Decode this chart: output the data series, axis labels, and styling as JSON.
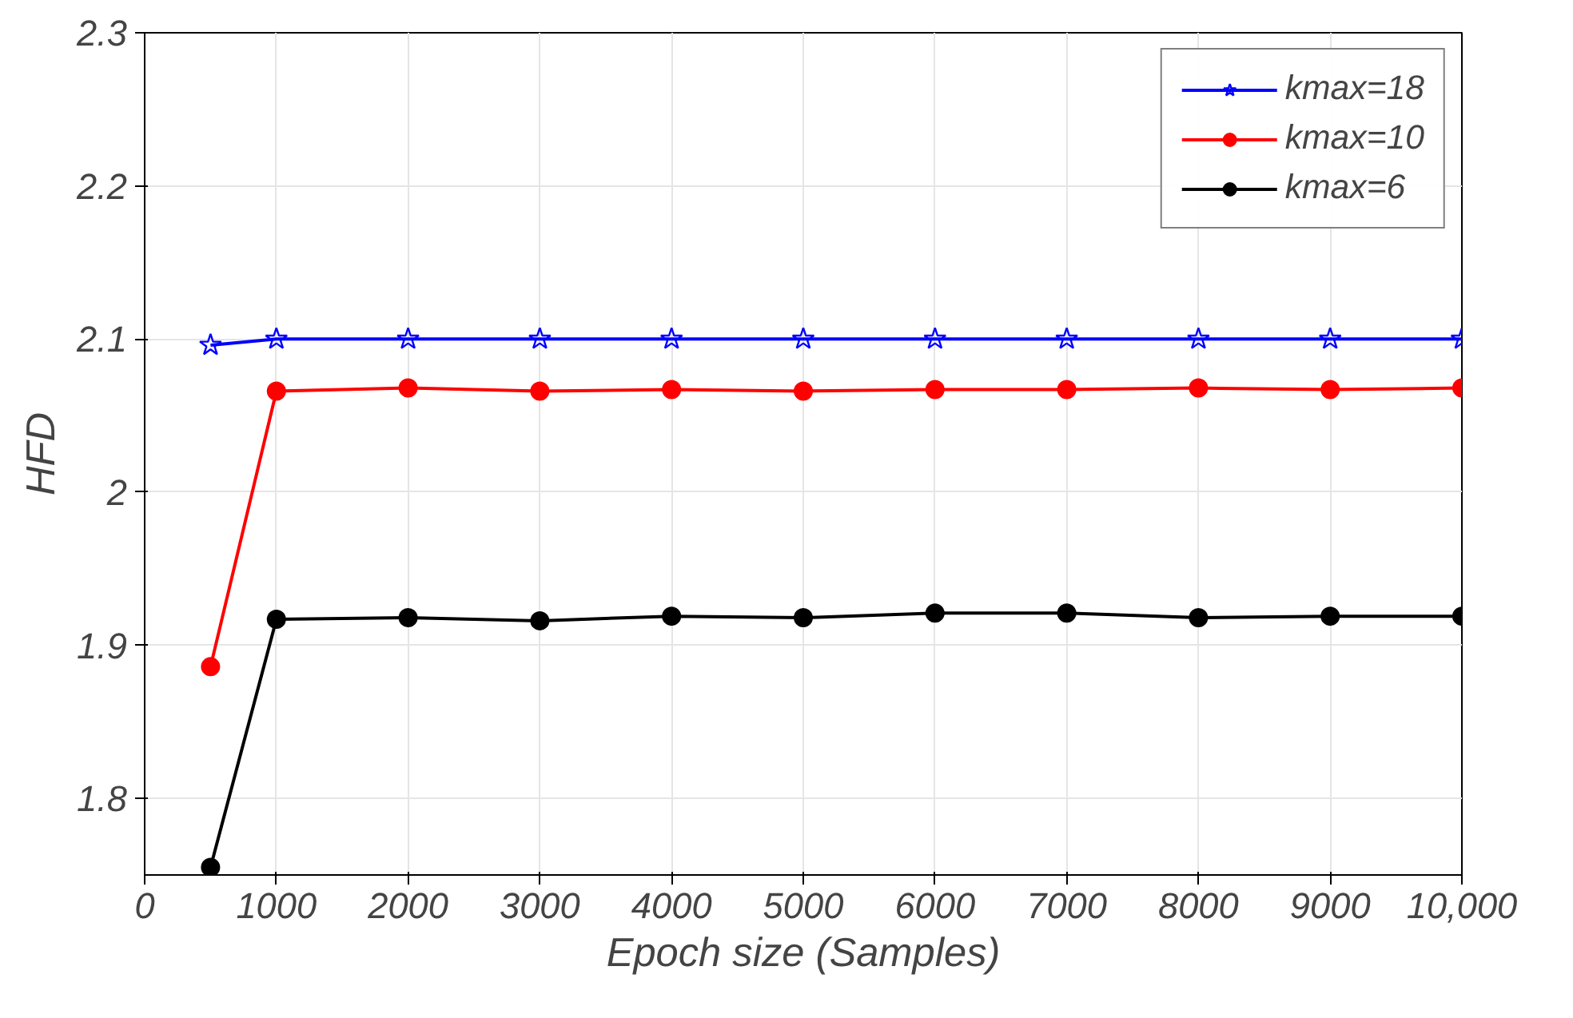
{
  "chart_data": {
    "type": "line",
    "xlabel": "Epoch size (Samples)",
    "ylabel": "HFD",
    "x": [
      500,
      1000,
      2000,
      3000,
      4000,
      5000,
      6000,
      7000,
      8000,
      9000,
      10000
    ],
    "series": [
      {
        "name": "kmax=18",
        "color": "#0000ff",
        "marker": "star",
        "values": [
          2.096,
          2.1,
          2.1,
          2.1,
          2.1,
          2.1,
          2.1,
          2.1,
          2.1,
          2.1,
          2.1
        ]
      },
      {
        "name": "kmax=10",
        "color": "#ff0000",
        "marker": "circle",
        "values": [
          1.886,
          2.066,
          2.068,
          2.066,
          2.067,
          2.066,
          2.067,
          2.067,
          2.068,
          2.067,
          2.068
        ]
      },
      {
        "name": "kmax=6",
        "color": "#000000",
        "marker": "circle",
        "values": [
          1.755,
          1.917,
          1.918,
          1.916,
          1.919,
          1.918,
          1.921,
          1.921,
          1.918,
          1.919,
          1.919
        ]
      }
    ],
    "xlim": [
      0,
      10000
    ],
    "xticks": [
      0,
      1000,
      2000,
      3000,
      4000,
      5000,
      6000,
      7000,
      8000,
      9000,
      {
        "value": 10000,
        "label": "10,000"
      }
    ],
    "ylim": [
      1.75,
      2.3
    ],
    "yticks": [
      1.8,
      1.9,
      2,
      2.1,
      2.2,
      2.3
    ],
    "grid": true,
    "legend": "top right",
    "line_style": "solid"
  }
}
